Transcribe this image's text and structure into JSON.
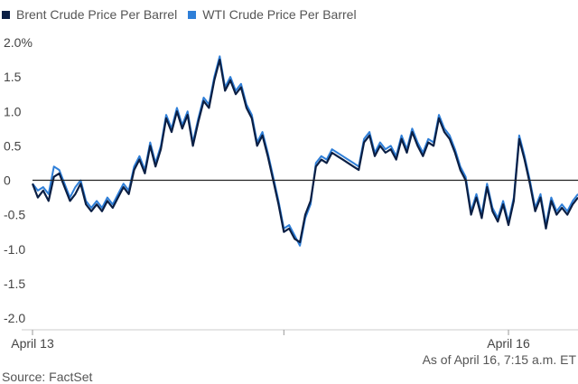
{
  "chart_data": {
    "type": "line",
    "legend_position": "top-left",
    "grid": false,
    "ylim": [
      -2.0,
      2.0
    ],
    "yticks": [
      {
        "value": 2.0,
        "label": "2.0%"
      },
      {
        "value": 1.5,
        "label": "1.5"
      },
      {
        "value": 1.0,
        "label": "1.0"
      },
      {
        "value": 0.5,
        "label": "0.5"
      },
      {
        "value": 0,
        "label": "0"
      },
      {
        "value": -0.5,
        "label": "-0.5"
      },
      {
        "value": -1.0,
        "label": "-1.0"
      },
      {
        "value": -1.5,
        "label": "-1.5"
      },
      {
        "value": -2.0,
        "label": "-2.0"
      }
    ],
    "xlim": [
      0,
      102
    ],
    "xticks": [
      {
        "value": 0,
        "label": "April 13"
      },
      {
        "value": 47,
        "label": ""
      },
      {
        "value": 89,
        "label": "April 16"
      }
    ],
    "series": [
      {
        "name": "Brent Crude Price Per Barrel",
        "color": "#0b1f44",
        "points": [
          [
            0,
            -0.05
          ],
          [
            1,
            -0.25
          ],
          [
            2,
            -0.15
          ],
          [
            3,
            -0.3
          ],
          [
            4,
            0.05
          ],
          [
            5,
            0.1
          ],
          [
            6,
            -0.1
          ],
          [
            7,
            -0.3
          ],
          [
            8,
            -0.2
          ],
          [
            9,
            -0.05
          ],
          [
            10,
            -0.35
          ],
          [
            11,
            -0.45
          ],
          [
            12,
            -0.35
          ],
          [
            13,
            -0.45
          ],
          [
            14,
            -0.3
          ],
          [
            15,
            -0.4
          ],
          [
            16,
            -0.25
          ],
          [
            17,
            -0.1
          ],
          [
            18,
            -0.2
          ],
          [
            19,
            0.15
          ],
          [
            20,
            0.3
          ],
          [
            21,
            0.1
          ],
          [
            22,
            0.5
          ],
          [
            23,
            0.2
          ],
          [
            24,
            0.45
          ],
          [
            25,
            0.9
          ],
          [
            26,
            0.7
          ],
          [
            27,
            1.0
          ],
          [
            28,
            0.75
          ],
          [
            29,
            0.95
          ],
          [
            30,
            0.5
          ],
          [
            31,
            0.85
          ],
          [
            32,
            1.15
          ],
          [
            33,
            1.05
          ],
          [
            34,
            1.45
          ],
          [
            35,
            1.75
          ],
          [
            36,
            1.3
          ],
          [
            37,
            1.45
          ],
          [
            38,
            1.25
          ],
          [
            39,
            1.35
          ],
          [
            40,
            1.05
          ],
          [
            41,
            0.9
          ],
          [
            42,
            0.5
          ],
          [
            43,
            0.65
          ],
          [
            44,
            0.35
          ],
          [
            45,
            0.0
          ],
          [
            46,
            -0.35
          ],
          [
            47,
            -0.75
          ],
          [
            48,
            -0.7
          ],
          [
            49,
            -0.85
          ],
          [
            50,
            -0.9
          ],
          [
            51,
            -0.5
          ],
          [
            52,
            -0.3
          ],
          [
            53,
            0.2
          ],
          [
            54,
            0.3
          ],
          [
            55,
            0.25
          ],
          [
            56,
            0.4
          ],
          [
            57,
            0.35
          ],
          [
            58,
            0.3
          ],
          [
            59,
            0.25
          ],
          [
            60,
            0.2
          ],
          [
            61,
            0.15
          ],
          [
            62,
            0.55
          ],
          [
            63,
            0.65
          ],
          [
            64,
            0.35
          ],
          [
            65,
            0.5
          ],
          [
            66,
            0.4
          ],
          [
            67,
            0.45
          ],
          [
            68,
            0.3
          ],
          [
            69,
            0.6
          ],
          [
            70,
            0.4
          ],
          [
            71,
            0.7
          ],
          [
            72,
            0.5
          ],
          [
            73,
            0.35
          ],
          [
            74,
            0.55
          ],
          [
            75,
            0.5
          ],
          [
            76,
            0.9
          ],
          [
            77,
            0.7
          ],
          [
            78,
            0.6
          ],
          [
            79,
            0.4
          ],
          [
            80,
            0.15
          ],
          [
            81,
            0.0
          ],
          [
            82,
            -0.5
          ],
          [
            83,
            -0.25
          ],
          [
            84,
            -0.55
          ],
          [
            85,
            -0.1
          ],
          [
            86,
            -0.45
          ],
          [
            87,
            -0.6
          ],
          [
            88,
            -0.35
          ],
          [
            89,
            -0.65
          ],
          [
            90,
            -0.3
          ],
          [
            91,
            0.6
          ],
          [
            92,
            0.3
          ],
          [
            93,
            -0.05
          ],
          [
            94,
            -0.45
          ],
          [
            95,
            -0.25
          ],
          [
            96,
            -0.7
          ],
          [
            97,
            -0.3
          ],
          [
            98,
            -0.5
          ],
          [
            99,
            -0.4
          ],
          [
            100,
            -0.5
          ],
          [
            101,
            -0.35
          ],
          [
            102,
            -0.25
          ]
        ]
      },
      {
        "name": "WTI Crude Price Per Barrel",
        "color": "#2f7fd8",
        "points": [
          [
            0,
            -0.05
          ],
          [
            1,
            -0.15
          ],
          [
            2,
            -0.1
          ],
          [
            3,
            -0.2
          ],
          [
            4,
            0.2
          ],
          [
            5,
            0.15
          ],
          [
            6,
            -0.05
          ],
          [
            7,
            -0.25
          ],
          [
            8,
            -0.1
          ],
          [
            9,
            0.0
          ],
          [
            10,
            -0.3
          ],
          [
            11,
            -0.4
          ],
          [
            12,
            -0.3
          ],
          [
            13,
            -0.4
          ],
          [
            14,
            -0.25
          ],
          [
            15,
            -0.35
          ],
          [
            16,
            -0.2
          ],
          [
            17,
            -0.05
          ],
          [
            18,
            -0.15
          ],
          [
            19,
            0.2
          ],
          [
            20,
            0.35
          ],
          [
            21,
            0.15
          ],
          [
            22,
            0.55
          ],
          [
            23,
            0.25
          ],
          [
            24,
            0.5
          ],
          [
            25,
            0.95
          ],
          [
            26,
            0.75
          ],
          [
            27,
            1.05
          ],
          [
            28,
            0.8
          ],
          [
            29,
            1.0
          ],
          [
            30,
            0.55
          ],
          [
            31,
            0.9
          ],
          [
            32,
            1.2
          ],
          [
            33,
            1.1
          ],
          [
            34,
            1.5
          ],
          [
            35,
            1.8
          ],
          [
            36,
            1.35
          ],
          [
            37,
            1.5
          ],
          [
            38,
            1.3
          ],
          [
            39,
            1.4
          ],
          [
            40,
            1.1
          ],
          [
            41,
            0.95
          ],
          [
            42,
            0.55
          ],
          [
            43,
            0.7
          ],
          [
            44,
            0.4
          ],
          [
            45,
            0.05
          ],
          [
            46,
            -0.3
          ],
          [
            47,
            -0.7
          ],
          [
            48,
            -0.65
          ],
          [
            49,
            -0.8
          ],
          [
            50,
            -0.95
          ],
          [
            51,
            -0.55
          ],
          [
            52,
            -0.35
          ],
          [
            53,
            0.25
          ],
          [
            54,
            0.35
          ],
          [
            55,
            0.3
          ],
          [
            56,
            0.45
          ],
          [
            57,
            0.4
          ],
          [
            58,
            0.35
          ],
          [
            59,
            0.3
          ],
          [
            60,
            0.25
          ],
          [
            61,
            0.2
          ],
          [
            62,
            0.6
          ],
          [
            63,
            0.7
          ],
          [
            64,
            0.4
          ],
          [
            65,
            0.55
          ],
          [
            66,
            0.45
          ],
          [
            67,
            0.5
          ],
          [
            68,
            0.35
          ],
          [
            69,
            0.65
          ],
          [
            70,
            0.45
          ],
          [
            71,
            0.75
          ],
          [
            72,
            0.55
          ],
          [
            73,
            0.4
          ],
          [
            74,
            0.6
          ],
          [
            75,
            0.55
          ],
          [
            76,
            0.95
          ],
          [
            77,
            0.75
          ],
          [
            78,
            0.65
          ],
          [
            79,
            0.45
          ],
          [
            80,
            0.2
          ],
          [
            81,
            0.05
          ],
          [
            82,
            -0.45
          ],
          [
            83,
            -0.2
          ],
          [
            84,
            -0.5
          ],
          [
            85,
            -0.05
          ],
          [
            86,
            -0.4
          ],
          [
            87,
            -0.55
          ],
          [
            88,
            -0.3
          ],
          [
            89,
            -0.6
          ],
          [
            90,
            -0.25
          ],
          [
            91,
            0.65
          ],
          [
            92,
            0.35
          ],
          [
            93,
            0.0
          ],
          [
            94,
            -0.4
          ],
          [
            95,
            -0.2
          ],
          [
            96,
            -0.65
          ],
          [
            97,
            -0.25
          ],
          [
            98,
            -0.45
          ],
          [
            99,
            -0.35
          ],
          [
            100,
            -0.45
          ],
          [
            101,
            -0.3
          ],
          [
            102,
            -0.2
          ]
        ]
      }
    ]
  },
  "footer": {
    "timestamp": "As of April 16, 7:15 a.m. ET",
    "source": "Source: FactSet"
  }
}
